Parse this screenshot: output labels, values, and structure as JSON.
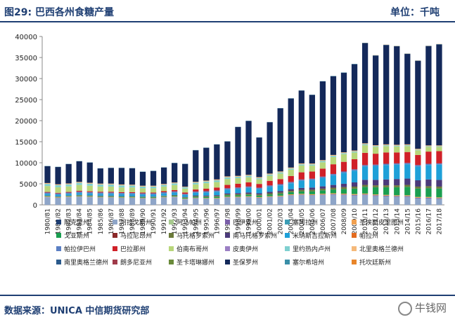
{
  "header": {
    "title": "图29: 巴西各州食糖产量",
    "unit": "单位：千吨"
  },
  "footer": {
    "source": "数据来源：UNICA 中信期货研究部",
    "watermark": "牛钱网"
  },
  "chart_data": {
    "type": "bar",
    "stacked": true,
    "ylim": [
      0,
      40000
    ],
    "yticks": [
      0,
      5000,
      10000,
      15000,
      20000,
      25000,
      30000,
      35000,
      40000
    ],
    "grid": false,
    "legend_position": "bottom",
    "categories": [
      "1980/81",
      "1981/82",
      "1982/83",
      "1983/84",
      "1984/85",
      "1985/86",
      "1986/87",
      "1987/88",
      "1988/89",
      "1989/90",
      "1990/91",
      "1991/92",
      "1992/93",
      "1993/94",
      "1994/95",
      "1995/96",
      "1996/97",
      "1997/98",
      "1998/99",
      "1999/00",
      "2000/01",
      "2001/02",
      "2002/03",
      "2003/04",
      "2004/05",
      "2005/06",
      "2006/07",
      "2007/08",
      "2008/09",
      "2009/10",
      "2010/11",
      "2011/12",
      "2012/13",
      "2013/14",
      "2014/15",
      "2015/16",
      "2016/17",
      "2017/18"
    ],
    "series": [
      {
        "name": "阿克里州",
        "color": "#1f3f73",
        "values": [
          0,
          0,
          0,
          0,
          0,
          0,
          0,
          0,
          0,
          0,
          0,
          0,
          0,
          0,
          0,
          0,
          0,
          0,
          0,
          0,
          0,
          0,
          0,
          0,
          0,
          0,
          0,
          0,
          0,
          0,
          0,
          0,
          0,
          0,
          0,
          0,
          0,
          0
        ]
      },
      {
        "name": "阿拉戈斯州",
        "color": "#8ea5c8",
        "values": [
          1800,
          1600,
          1800,
          1900,
          1800,
          1700,
          1700,
          1600,
          1600,
          1500,
          1500,
          1700,
          1800,
          1300,
          1500,
          1400,
          1400,
          1700,
          1700,
          1800,
          1600,
          1800,
          1900,
          2200,
          2300,
          2200,
          2300,
          2400,
          2300,
          2200,
          2300,
          2100,
          2000,
          1900,
          1900,
          1500,
          1500,
          1400
        ]
      },
      {
        "name": "阿马帕州",
        "color": "#a7c98f",
        "values": [
          0,
          0,
          0,
          0,
          0,
          0,
          0,
          0,
          0,
          0,
          0,
          0,
          0,
          0,
          0,
          0,
          0,
          0,
          0,
          0,
          0,
          0,
          0,
          0,
          0,
          0,
          0,
          0,
          0,
          0,
          0,
          0,
          0,
          0,
          0,
          0,
          0,
          0
        ]
      },
      {
        "name": "巴伊亚州",
        "color": "#7a5fa8",
        "values": [
          50,
          50,
          50,
          50,
          50,
          50,
          50,
          50,
          50,
          50,
          50,
          50,
          50,
          50,
          60,
          60,
          60,
          70,
          70,
          70,
          70,
          80,
          80,
          90,
          100,
          100,
          110,
          120,
          130,
          140,
          150,
          150,
          150,
          150,
          150,
          150,
          150,
          150
        ]
      },
      {
        "name": "塞阿拉州",
        "color": "#3c9db5",
        "values": [
          30,
          30,
          30,
          30,
          30,
          30,
          30,
          30,
          30,
          30,
          30,
          30,
          30,
          30,
          30,
          30,
          30,
          30,
          30,
          30,
          30,
          30,
          30,
          30,
          30,
          30,
          30,
          30,
          30,
          30,
          30,
          30,
          30,
          30,
          30,
          30,
          30,
          30
        ]
      },
      {
        "name": "圣埃斯皮里图州",
        "color": "#f0a050",
        "values": [
          100,
          100,
          100,
          100,
          100,
          100,
          100,
          100,
          100,
          100,
          100,
          100,
          100,
          100,
          120,
          130,
          140,
          150,
          150,
          150,
          150,
          160,
          170,
          180,
          190,
          190,
          200,
          200,
          200,
          200,
          200,
          200,
          200,
          200,
          200,
          200,
          200,
          200
        ]
      },
      {
        "name": "戈亚斯州",
        "color": "#1a9e50",
        "values": [
          100,
          100,
          100,
          150,
          150,
          150,
          150,
          150,
          150,
          150,
          150,
          150,
          180,
          200,
          250,
          280,
          300,
          320,
          350,
          350,
          350,
          400,
          450,
          500,
          600,
          700,
          800,
          900,
          1100,
          1300,
          1600,
          1700,
          1800,
          1900,
          2000,
          2000,
          2100,
          2100
        ]
      },
      {
        "name": "马拉尼昂州",
        "color": "#8b2a2a",
        "values": [
          30,
          30,
          30,
          30,
          30,
          30,
          30,
          30,
          30,
          30,
          30,
          30,
          30,
          30,
          30,
          30,
          30,
          30,
          30,
          30,
          30,
          30,
          30,
          30,
          30,
          30,
          30,
          30,
          30,
          30,
          30,
          30,
          30,
          30,
          30,
          30,
          30,
          30
        ]
      },
      {
        "name": "马托格罗索州",
        "color": "#6b7a3a",
        "values": [
          50,
          50,
          50,
          50,
          50,
          50,
          50,
          50,
          50,
          50,
          50,
          60,
          70,
          80,
          100,
          120,
          150,
          180,
          200,
          220,
          230,
          250,
          270,
          300,
          320,
          350,
          380,
          400,
          420,
          430,
          430,
          430,
          430,
          430,
          430,
          430,
          430,
          430
        ]
      },
      {
        "name": "南马托格罗索州",
        "color": "#4b3a7a",
        "values": [
          50,
          50,
          50,
          60,
          60,
          60,
          60,
          60,
          60,
          60,
          60,
          70,
          80,
          100,
          150,
          180,
          200,
          250,
          280,
          300,
          300,
          350,
          380,
          400,
          450,
          500,
          550,
          650,
          800,
          1000,
          1200,
          1300,
          1400,
          1500,
          1500,
          1500,
          1600,
          1600
        ]
      },
      {
        "name": "米纳斯吉拉斯州",
        "color": "#1ea0d8",
        "values": [
          400,
          400,
          400,
          450,
          450,
          450,
          450,
          450,
          450,
          450,
          450,
          500,
          550,
          500,
          600,
          700,
          800,
          900,
          1000,
          1100,
          1000,
          1200,
          1300,
          1400,
          1700,
          1800,
          2000,
          2300,
          2600,
          2800,
          3200,
          3300,
          3400,
          3400,
          3400,
          3300,
          3400,
          3600
        ]
      },
      {
        "name": "帕拉州",
        "color": "#e36b1f",
        "values": [
          10,
          10,
          10,
          10,
          10,
          10,
          10,
          10,
          10,
          10,
          10,
          10,
          10,
          10,
          10,
          10,
          10,
          10,
          10,
          10,
          10,
          10,
          10,
          10,
          10,
          10,
          10,
          10,
          10,
          10,
          10,
          10,
          10,
          10,
          10,
          10,
          10,
          10
        ]
      },
      {
        "name": "帕拉伊巴州",
        "color": "#5a7fc4",
        "values": [
          300,
          300,
          300,
          300,
          300,
          300,
          300,
          300,
          300,
          300,
          300,
          300,
          300,
          200,
          300,
          300,
          300,
          300,
          300,
          300,
          300,
          300,
          300,
          300,
          300,
          300,
          300,
          300,
          300,
          300,
          300,
          300,
          300,
          300,
          300,
          300,
          300,
          300
        ]
      },
      {
        "name": "巴拉那州",
        "color": "#d02028",
        "values": [
          150,
          150,
          150,
          200,
          200,
          200,
          200,
          200,
          200,
          200,
          200,
          250,
          300,
          350,
          500,
          600,
          700,
          800,
          900,
          1000,
          900,
          1100,
          1200,
          1400,
          1700,
          1700,
          1900,
          2300,
          2300,
          2400,
          2900,
          2600,
          2700,
          2600,
          2600,
          2400,
          2900,
          2900
        ]
      },
      {
        "name": "伯南布哥州",
        "color": "#b8d67a",
        "values": [
          1400,
          1300,
          1300,
          1400,
          1300,
          1200,
          1200,
          1100,
          1100,
          1000,
          1000,
          1100,
          1200,
          900,
          1200,
          1300,
          1300,
          1400,
          1300,
          1200,
          1100,
          1200,
          1300,
          1500,
          1600,
          1400,
          1500,
          1700,
          1800,
          1600,
          1800,
          1600,
          1500,
          1400,
          1400,
          1100,
          1100,
          1000
        ]
      },
      {
        "name": "皮奥伊州",
        "color": "#9b7fc4",
        "values": [
          10,
          10,
          10,
          10,
          10,
          10,
          10,
          10,
          10,
          10,
          10,
          10,
          10,
          10,
          10,
          10,
          10,
          10,
          10,
          10,
          10,
          10,
          10,
          10,
          10,
          10,
          10,
          10,
          10,
          10,
          10,
          10,
          10,
          10,
          10,
          10,
          10,
          10
        ]
      },
      {
        "name": "里约热内卢州",
        "color": "#7fd0d0",
        "values": [
          500,
          500,
          500,
          500,
          500,
          500,
          500,
          500,
          450,
          400,
          400,
          400,
          400,
          300,
          400,
          400,
          400,
          400,
          350,
          350,
          300,
          300,
          300,
          300,
          300,
          300,
          300,
          300,
          250,
          250,
          250,
          200,
          200,
          200,
          200,
          150,
          150,
          150
        ]
      },
      {
        "name": "北里奥格兰德州",
        "color": "#f5b97a",
        "values": [
          200,
          200,
          200,
          200,
          200,
          200,
          200,
          200,
          200,
          200,
          200,
          200,
          200,
          150,
          200,
          200,
          200,
          200,
          200,
          200,
          200,
          200,
          200,
          200,
          200,
          200,
          200,
          200,
          200,
          200,
          200,
          200,
          200,
          200,
          200,
          200,
          200,
          200
        ]
      },
      {
        "name": "南里奥格兰德州",
        "color": "#2a5a8c",
        "values": [
          10,
          10,
          10,
          10,
          10,
          10,
          10,
          10,
          10,
          10,
          10,
          10,
          10,
          10,
          10,
          10,
          10,
          10,
          10,
          10,
          10,
          10,
          10,
          10,
          10,
          10,
          10,
          10,
          10,
          10,
          10,
          10,
          10,
          10,
          10,
          10,
          10,
          10
        ]
      },
      {
        "name": "朗多尼亚州",
        "color": "#a03a4a",
        "values": [
          0,
          0,
          0,
          0,
          0,
          0,
          0,
          0,
          0,
          0,
          0,
          0,
          0,
          0,
          0,
          0,
          0,
          0,
          0,
          0,
          0,
          0,
          0,
          0,
          0,
          0,
          0,
          0,
          0,
          0,
          0,
          0,
          0,
          0,
          0,
          0,
          0,
          0
        ]
      },
      {
        "name": "圣卡塔琳娜州",
        "color": "#6a8a3a",
        "values": [
          0,
          0,
          0,
          0,
          0,
          0,
          0,
          0,
          0,
          0,
          0,
          0,
          0,
          0,
          0,
          0,
          0,
          0,
          0,
          0,
          0,
          0,
          0,
          0,
          0,
          0,
          0,
          0,
          0,
          0,
          0,
          0,
          0,
          0,
          0,
          0,
          0,
          0
        ]
      },
      {
        "name": "圣保罗州",
        "color": "#14295a",
        "values": [
          4000,
          4100,
          4600,
          4900,
          4800,
          3600,
          3700,
          3900,
          3900,
          3300,
          3500,
          3900,
          4600,
          5400,
          7500,
          7800,
          8300,
          8300,
          11600,
          12800,
          9400,
          12200,
          15000,
          16400,
          17300,
          16300,
          18700,
          18700,
          18900,
          20500,
          23800,
          21300,
          23600,
          23400,
          21500,
          20900,
          23600,
          24000
        ]
      },
      {
        "name": "塞尔希培州",
        "color": "#3a8fa8",
        "values": [
          50,
          50,
          50,
          50,
          50,
          50,
          50,
          50,
          50,
          50,
          50,
          50,
          50,
          50,
          50,
          50,
          50,
          50,
          50,
          50,
          50,
          50,
          50,
          50,
          50,
          50,
          50,
          60,
          60,
          60,
          60,
          60,
          60,
          60,
          60,
          60,
          60,
          60
        ]
      },
      {
        "name": "托坎廷斯州",
        "color": "#e8852a",
        "values": [
          0,
          0,
          0,
          0,
          0,
          0,
          0,
          0,
          0,
          0,
          0,
          0,
          0,
          0,
          0,
          0,
          0,
          0,
          0,
          0,
          0,
          0,
          0,
          0,
          0,
          0,
          0,
          0,
          0,
          0,
          20,
          30,
          30,
          30,
          30,
          30,
          30,
          30
        ]
      }
    ]
  }
}
